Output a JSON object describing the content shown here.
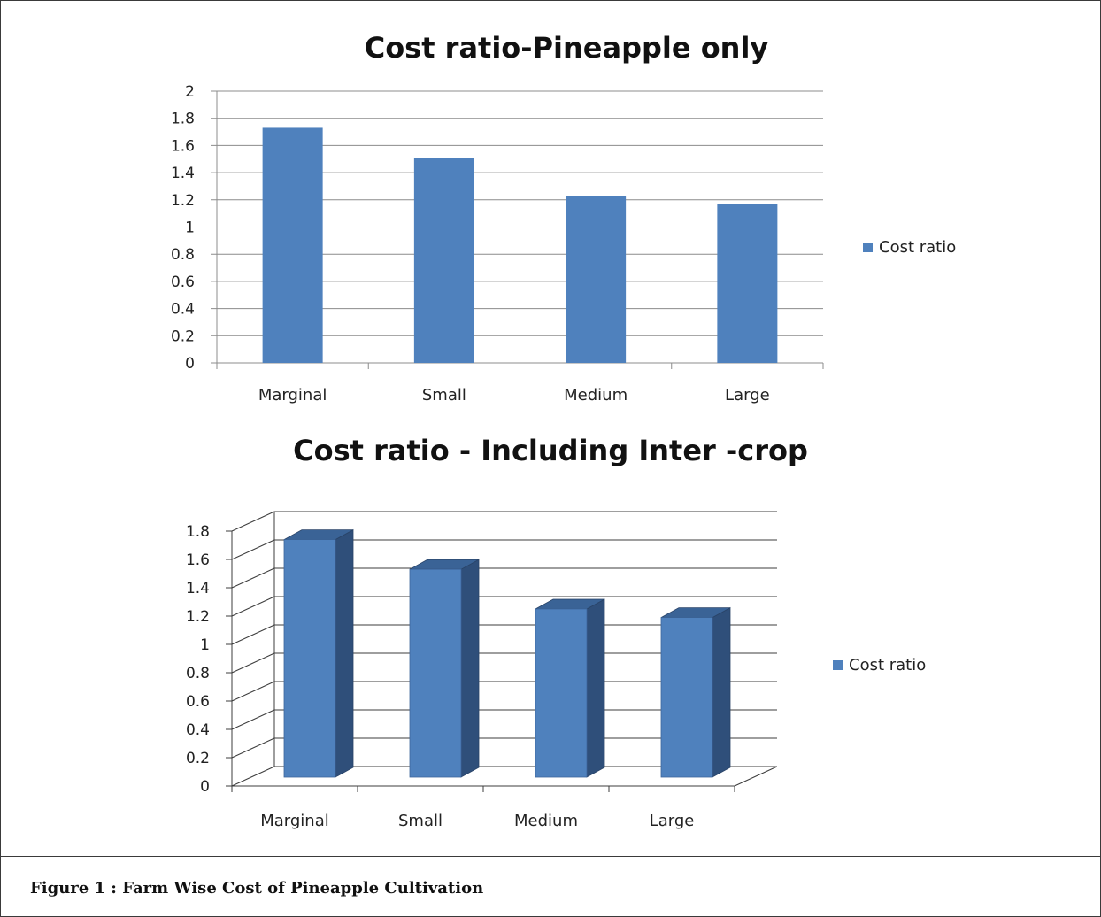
{
  "chart_data": [
    {
      "type": "bar",
      "title": "Cost ratio-Pineapple only",
      "categories": [
        "Marginal",
        "Small",
        "Medium",
        "Large"
      ],
      "series": [
        {
          "name": "Cost ratio",
          "values": [
            1.73,
            1.51,
            1.23,
            1.17
          ]
        }
      ],
      "ylim": [
        0,
        2
      ],
      "yticks": [
        "0",
        "0.2",
        "0.4",
        "0.6",
        "0.8",
        "1",
        "1.2",
        "1.4",
        "1.6",
        "1.8",
        "2"
      ],
      "grid": true,
      "legend": "right",
      "style": "2d",
      "color": "#4f81bd"
    },
    {
      "type": "bar",
      "title": "Cost ratio - Including Inter -crop",
      "categories": [
        "Marginal",
        "Small",
        "Medium",
        "Large"
      ],
      "series": [
        {
          "name": "Cost ratio",
          "values": [
            1.74,
            1.53,
            1.25,
            1.19
          ]
        }
      ],
      "ylim": [
        0,
        1.8
      ],
      "yticks": [
        "0",
        "0.2",
        "0.4",
        "0.6",
        "0.8",
        "1",
        "1.2",
        "1.4",
        "1.6",
        "1.8"
      ],
      "grid": true,
      "legend": "right",
      "style": "3d",
      "color": "#4f81bd"
    }
  ],
  "caption": "Figure 1 : Farm Wise Cost of Pineapple Cultivation"
}
